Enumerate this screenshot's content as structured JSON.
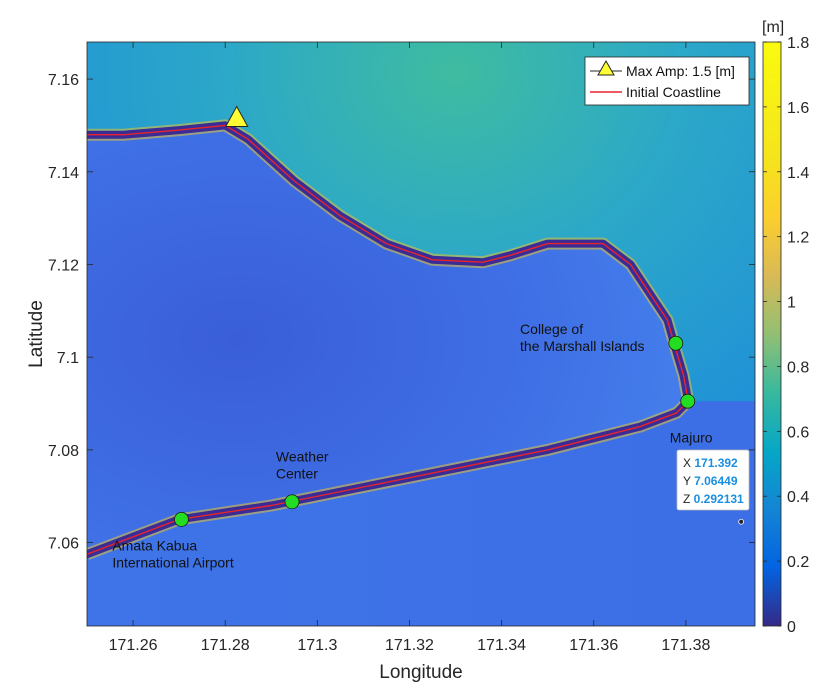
{
  "chart_data": {
    "type": "heatmap",
    "title": "",
    "xlabel": "Longitude",
    "ylabel": "Latitude",
    "xlim": [
      171.25,
      171.395
    ],
    "ylim": [
      7.042,
      7.168
    ],
    "x_ticks": [
      171.26,
      171.28,
      171.3,
      171.32,
      171.34,
      171.36,
      171.38
    ],
    "x_tick_labels": [
      "171.26",
      "171.28",
      "171.3",
      "171.32",
      "171.34",
      "171.36",
      "171.38"
    ],
    "y_ticks": [
      7.06,
      7.08,
      7.1,
      7.12,
      7.14,
      7.16
    ],
    "y_tick_labels": [
      "7.06",
      "7.08",
      "7.1",
      "7.12",
      "7.14",
      "7.16"
    ],
    "colorbar": {
      "label": "[m]",
      "min": 0,
      "max": 1.8,
      "ticks": [
        0,
        0.2,
        0.4,
        0.6,
        0.8,
        1,
        1.2,
        1.4,
        1.6,
        1.8
      ],
      "tick_labels": [
        "0",
        "0.2",
        "0.4",
        "0.6",
        "0.8",
        "1",
        "1.2",
        "1.4",
        "1.6",
        "1.8"
      ],
      "colormap": "parula"
    },
    "legend": {
      "placement": "top-right",
      "entries": [
        {
          "label": "Max Amp: 1.5 [m]",
          "marker": "triangle",
          "color": "#ffff33"
        },
        {
          "label": "Initial Coastline",
          "marker": "line",
          "color": "#e8232d"
        }
      ]
    },
    "max_amp_marker": {
      "x": 171.2825,
      "y": 7.1515,
      "value": 1.5
    },
    "atoll_coastline": [
      [
        171.25,
        7.0575
      ],
      [
        171.27,
        7.065
      ],
      [
        171.29,
        7.068
      ],
      [
        171.31,
        7.072
      ],
      [
        171.33,
        7.076
      ],
      [
        171.35,
        7.08
      ],
      [
        171.37,
        7.085
      ],
      [
        171.378,
        7.088
      ],
      [
        171.3805,
        7.0905
      ],
      [
        171.3795,
        7.096
      ],
      [
        171.378,
        7.101
      ],
      [
        171.376,
        7.108
      ],
      [
        171.372,
        7.114
      ],
      [
        171.368,
        7.12
      ],
      [
        171.362,
        7.1245
      ],
      [
        171.35,
        7.1245
      ],
      [
        171.342,
        7.122
      ],
      [
        171.336,
        7.1205
      ],
      [
        171.325,
        7.121
      ],
      [
        171.315,
        7.1245
      ],
      [
        171.305,
        7.1305
      ],
      [
        171.295,
        7.138
      ],
      [
        171.285,
        7.147
      ],
      [
        171.28,
        7.15
      ],
      [
        171.27,
        7.149
      ],
      [
        171.258,
        7.148
      ],
      [
        171.25,
        7.148
      ]
    ],
    "sites": [
      {
        "name": "Amata Kabua International Airport",
        "label_lines": [
          "Amata Kabua",
          "International Airport"
        ],
        "x": 171.2705,
        "y": 7.065,
        "label_x": 171.2555,
        "label_y": 7.0583
      },
      {
        "name": "Weather Center",
        "label_lines": [
          "Weather",
          "Center"
        ],
        "x": 171.2945,
        "y": 7.0688,
        "label_x": 171.291,
        "label_y": 7.0775
      },
      {
        "name": "College of the Marshall Islands",
        "label_lines": [
          "College of",
          "the Marshall Islands"
        ],
        "x": 171.3778,
        "y": 7.103,
        "label_x": 171.344,
        "label_y": 7.105
      },
      {
        "name": "Majuro",
        "label_lines": [],
        "x": 171.3804,
        "y": 7.0905,
        "label_x": null,
        "label_y": null
      }
    ],
    "place_labels": [
      {
        "text": "Majuro",
        "x": 171.3765,
        "y": 7.0816
      }
    ],
    "datatip": {
      "x_label": "X",
      "x_value": "171.392",
      "y_label": "Y",
      "y_value": "7.06449",
      "z_label": "Z",
      "z_value": "0.292131",
      "anchor_x": 171.392,
      "anchor_y": 7.06449
    }
  }
}
